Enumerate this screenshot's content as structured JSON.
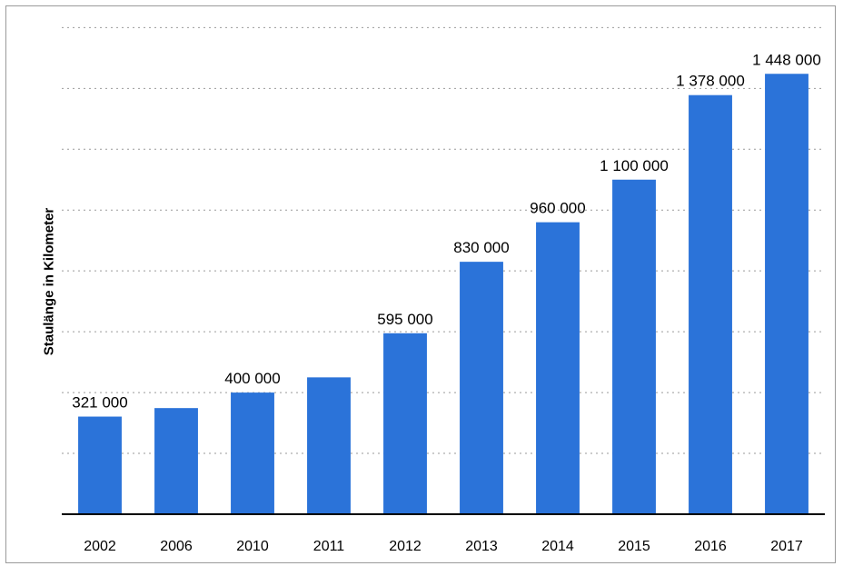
{
  "chart_data": {
    "type": "bar",
    "title": "",
    "xlabel": "",
    "ylabel": "Staulänge in Kilometer",
    "categories": [
      "2002",
      "2006",
      "2010",
      "2011",
      "2012",
      "2013",
      "2014",
      "2015",
      "2016",
      "2017"
    ],
    "values": [
      321000,
      349000,
      400000,
      450000,
      595000,
      830000,
      960000,
      1100000,
      1378000,
      1448000
    ],
    "value_labels": [
      "321 000",
      "",
      "400 000",
      "",
      "595 000",
      "830 000",
      "960 000",
      "1 100 000",
      "1 378 000",
      "1 448 000"
    ],
    "ylim": [
      0,
      1625000
    ],
    "grid": true,
    "bar_color": "#2b73d9"
  }
}
